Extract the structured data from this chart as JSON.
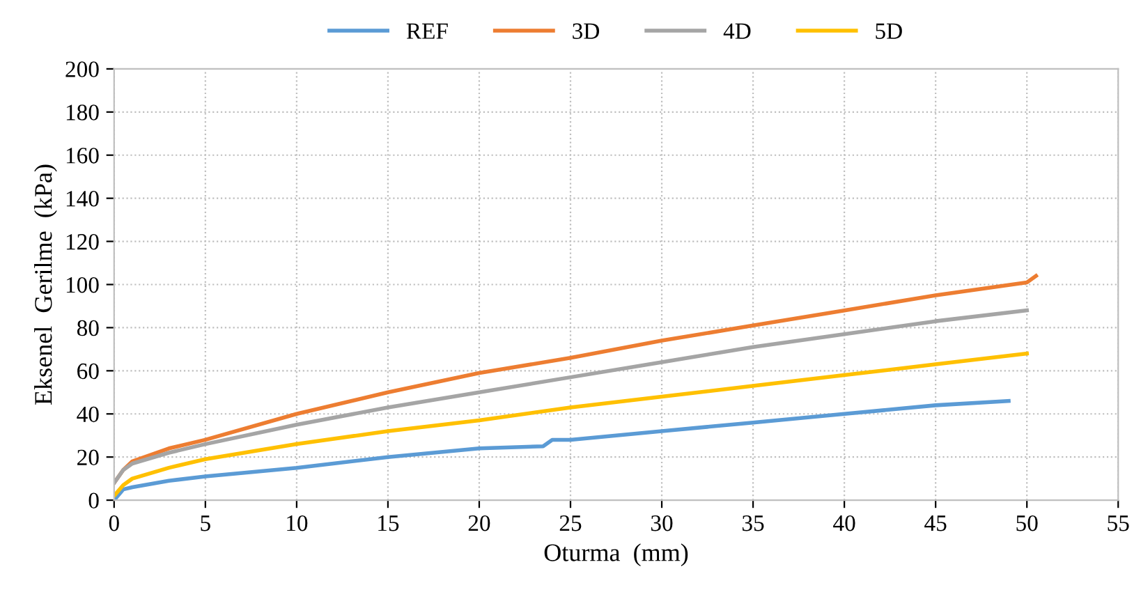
{
  "chart_data": {
    "type": "line",
    "xlabel": "Oturma  (mm)",
    "ylabel": "Eksenel  Gerilme  (kPa)",
    "xlim": [
      0,
      55
    ],
    "xticks": [
      0,
      5,
      10,
      15,
      20,
      25,
      30,
      35,
      40,
      45,
      50,
      55
    ],
    "ylim": [
      0,
      200
    ],
    "yticks": [
      0,
      20,
      40,
      60,
      80,
      100,
      120,
      140,
      160,
      180,
      200
    ],
    "grid": true,
    "legend": "top",
    "marker": "none",
    "line_style": "solid",
    "series": [
      {
        "name": "REF",
        "color": "#5b9bd5",
        "x": [
          0,
          0.5,
          1,
          3,
          5,
          10,
          15,
          20,
          23.5,
          24,
          25,
          30,
          35,
          40,
          45,
          49
        ],
        "values": [
          0,
          5,
          6,
          9,
          11,
          15,
          20,
          24,
          25,
          28,
          28,
          32,
          36,
          40,
          44,
          46
        ]
      },
      {
        "name": "3D",
        "color": "#ed7d31",
        "x": [
          0,
          0.5,
          1,
          3,
          5,
          10,
          15,
          20,
          25,
          30,
          35,
          40,
          45,
          50,
          50.5
        ],
        "values": [
          8,
          14,
          18,
          24,
          28,
          40,
          50,
          59,
          66,
          74,
          81,
          88,
          95,
          101,
          104
        ]
      },
      {
        "name": "4D",
        "color": "#a5a5a5",
        "x": [
          0,
          0.5,
          1,
          3,
          5,
          10,
          15,
          20,
          25,
          30,
          35,
          40,
          45,
          50
        ],
        "values": [
          8,
          14,
          17,
          22,
          26,
          35,
          43,
          50,
          57,
          64,
          71,
          77,
          83,
          88
        ]
      },
      {
        "name": "5D",
        "color": "#ffc000",
        "x": [
          0,
          0.5,
          1,
          3,
          5,
          10,
          15,
          20,
          25,
          30,
          35,
          40,
          45,
          50
        ],
        "values": [
          2,
          7,
          10,
          15,
          19,
          26,
          32,
          37,
          43,
          48,
          53,
          58,
          63,
          68
        ]
      }
    ]
  }
}
